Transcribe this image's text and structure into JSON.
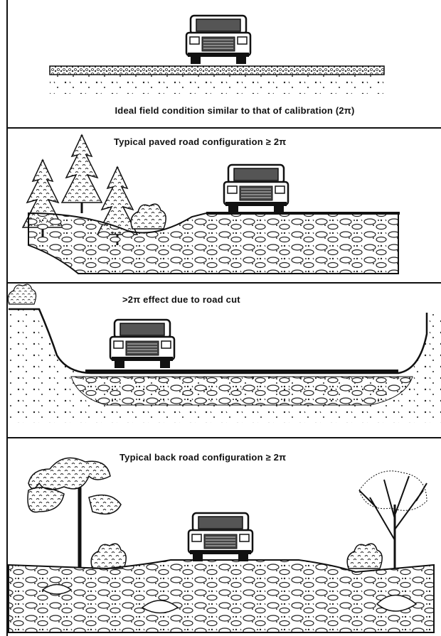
{
  "panels": [
    {
      "caption": "Ideal field condition similar to that of calibration (2π)"
    },
    {
      "caption": "Typical paved road configuration   ≥ 2π"
    },
    {
      "caption": ">2π effect due to road cut"
    },
    {
      "caption": "Typical back road configuration   ≥ 2π"
    }
  ]
}
